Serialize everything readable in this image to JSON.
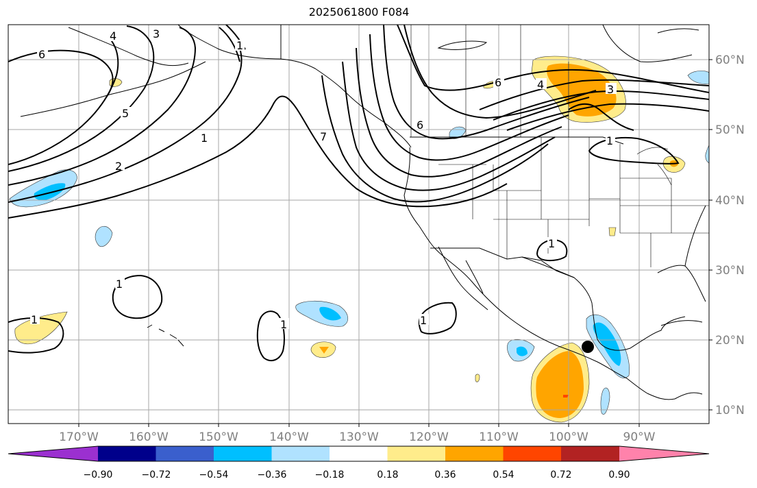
{
  "title": "2025061800 F084",
  "map": {
    "lon_range": [
      -180,
      -80
    ],
    "lat_range": [
      8,
      65
    ],
    "lat_labels": [
      "60°N",
      "50°N",
      "40°N",
      "30°N",
      "20°N",
      "10°N"
    ],
    "lon_labels": [
      "170°W",
      "160°W",
      "150°W",
      "140°W",
      "130°W",
      "120°W",
      "110°W",
      "100°W",
      "90°W"
    ],
    "contour_labels": [
      "6",
      "4",
      "3",
      "5",
      "2",
      "1",
      "1",
      "7",
      "6",
      "6",
      "4",
      "3",
      "1",
      "1",
      "1",
      "1",
      "1",
      "1"
    ],
    "marker": {
      "type": "dot",
      "color": "#000000",
      "lon": -97,
      "lat": 19
    }
  },
  "colorbar": {
    "ticks": [
      "−0.90",
      "−0.72",
      "−0.54",
      "−0.36",
      "−0.18",
      "0.18",
      "0.36",
      "0.54",
      "0.72",
      "0.90"
    ],
    "colors": [
      "#9b30d0",
      "#00008b",
      "#3a5fcd",
      "#00bfff",
      "#b0e2ff",
      "#ffffff",
      "#ffec8b",
      "#ffa500",
      "#ff4500",
      "#b22222",
      "#ff82ab"
    ]
  }
}
